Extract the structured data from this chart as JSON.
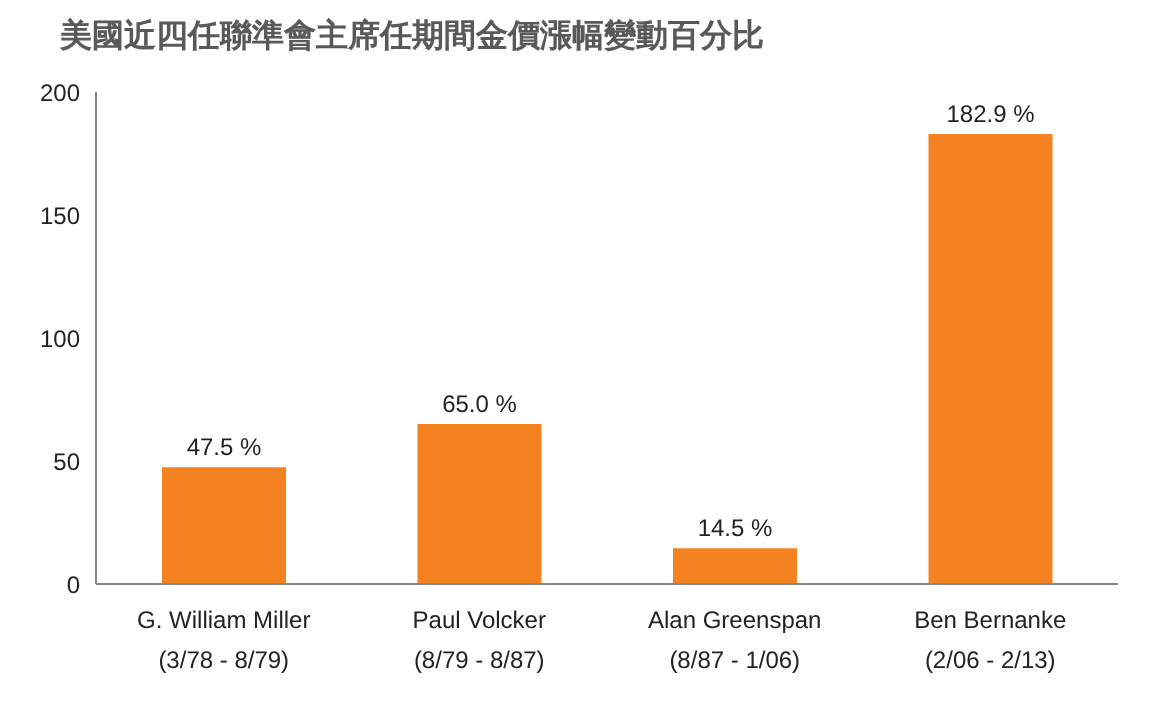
{
  "chart_data": {
    "type": "bar",
    "title": "美國近四任聯準會主席任期間金價漲幅變動百分比",
    "categories": [
      "G. William Miller\n(3/78 - 8/79)",
      "Paul Volcker\n(8/79 - 8/87)",
      "Alan Greenspan\n(8/87 - 1/06)",
      "Ben Bernanke\n(2/06 - 2/13)"
    ],
    "values": [
      47.5,
      65.0,
      14.5,
      182.9
    ],
    "value_labels": [
      "47.5 %",
      "65.0 %",
      "14.5 %",
      "182.9 %"
    ],
    "color": "#f58220",
    "ylim": [
      0,
      200
    ],
    "yticks": [
      0,
      50,
      100,
      150,
      200
    ]
  }
}
